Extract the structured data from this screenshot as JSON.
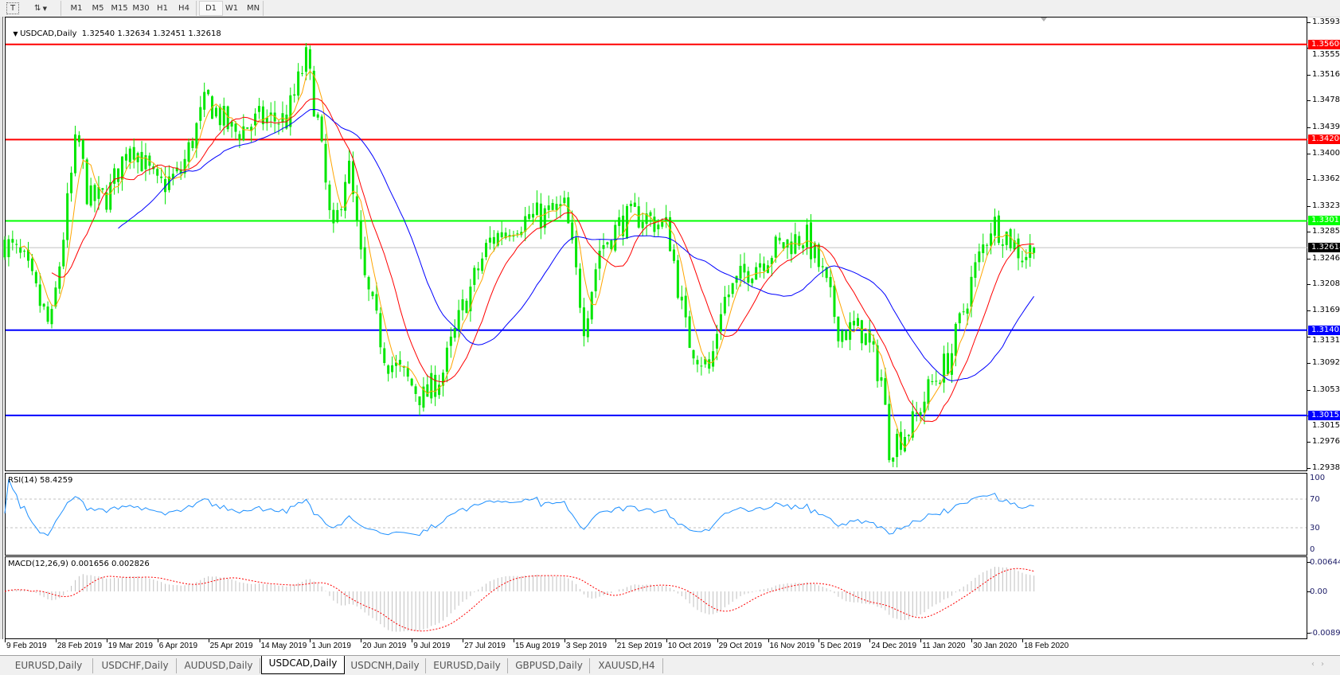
{
  "toolbar": {
    "text_tool_label": "T",
    "timeframes": [
      "M1",
      "M5",
      "M15",
      "M30",
      "H1",
      "H4",
      "D1",
      "W1",
      "MN"
    ],
    "active_timeframe": "D1"
  },
  "chart": {
    "title": "USDCAD,Daily",
    "ohlc": "1.32540 1.32634 1.32451 1.32618",
    "price_axis": [
      "1.35930",
      "1.35550",
      "1.35160",
      "1.34780",
      "1.34390",
      "1.34000",
      "1.33620",
      "1.33230",
      "1.32850",
      "1.32460",
      "1.32080",
      "1.31690",
      "1.31310",
      "1.30920",
      "1.30530",
      "1.30150",
      "1.29760",
      "1.29380"
    ],
    "levels": [
      {
        "price": "1.35606",
        "color": "#ff0000"
      },
      {
        "price": "1.34206",
        "color": "#ff0000"
      },
      {
        "price": "1.33011",
        "color": "#00ff00"
      },
      {
        "price": "1.31405",
        "color": "#0000ff"
      },
      {
        "price": "1.30152",
        "color": "#0000ff"
      }
    ],
    "current_price": "1.32618",
    "date_axis": [
      "9 Feb 2019",
      "28 Feb 2019",
      "19 Mar 2019",
      "6 Apr 2019",
      "25 Apr 2019",
      "14 May 2019",
      "1 Jun 2019",
      "20 Jun 2019",
      "9 Jul 2019",
      "27 Jul 2019",
      "15 Aug 2019",
      "3 Sep 2019",
      "21 Sep 2019",
      "10 Oct 2019",
      "29 Oct 2019",
      "16 Nov 2019",
      "5 Dec 2019",
      "24 Dec 2019",
      "11 Jan 2020",
      "30 Jan 2020",
      "18 Feb 2020"
    ],
    "colors": {
      "candle": "#00e600",
      "ma_fast": "#ffa500",
      "ma_mid": "#ff0000",
      "ma_slow": "#0000ff",
      "current_line": "#c0c0c0"
    }
  },
  "rsi": {
    "label": "RSI(14) 58.4259",
    "axis": [
      "100",
      "70",
      "30",
      "0"
    ],
    "color": "#1e90ff"
  },
  "macd": {
    "label": "MACD(12,26,9) 0.001656 0.002826",
    "axis": [
      "0.006448",
      "0.00",
      "-0.008982"
    ],
    "histogram_color": "#c0c0c0",
    "signal_color": "#ff0000"
  },
  "tabs": [
    "EURUSD,Daily",
    "USDCHF,Daily",
    "AUDUSD,Daily",
    "USDCAD,Daily",
    "USDCNH,Daily",
    "EURUSD,Daily",
    "GBPUSD,Daily",
    "XAUUSD,H4"
  ],
  "active_tab": "USDCAD,Daily",
  "chart_data": {
    "type": "candlestick",
    "symbol": "USDCAD",
    "timeframe": "Daily",
    "ylim": [
      1.2938,
      1.3593
    ],
    "rsi_ylim": [
      0,
      100
    ],
    "macd_ylim": [
      -0.008982,
      0.006448
    ],
    "last_bar": {
      "open": 1.3254,
      "high": 1.32634,
      "low": 1.32451,
      "close": 1.32618
    },
    "approx_close_path": [
      [
        "2019-02-08",
        1.327
      ],
      [
        "2019-02-15",
        1.324
      ],
      [
        "2019-02-26",
        1.314
      ],
      [
        "2019-03-07",
        1.343
      ],
      [
        "2019-03-12",
        1.333
      ],
      [
        "2019-03-19",
        1.3337
      ],
      [
        "2019-03-27",
        1.342
      ],
      [
        "2019-04-05",
        1.335
      ],
      [
        "2019-04-15",
        1.337
      ],
      [
        "2019-04-24",
        1.348
      ],
      [
        "2019-05-03",
        1.343
      ],
      [
        "2019-05-14",
        1.345
      ],
      [
        "2019-05-23",
        1.345
      ],
      [
        "2019-05-30",
        1.354
      ],
      [
        "2019-06-04",
        1.345
      ],
      [
        "2019-06-10",
        1.327
      ],
      [
        "2019-06-14",
        1.339
      ],
      [
        "2019-06-20",
        1.322
      ],
      [
        "2019-06-28",
        1.31
      ],
      [
        "2019-07-05",
        1.307
      ],
      [
        "2019-07-12",
        1.304
      ],
      [
        "2019-07-19",
        1.308
      ],
      [
        "2019-07-26",
        1.317
      ],
      [
        "2019-08-06",
        1.327
      ],
      [
        "2019-08-15",
        1.33
      ],
      [
        "2019-08-27",
        1.331
      ],
      [
        "2019-09-03",
        1.332
      ],
      [
        "2019-09-10",
        1.315
      ],
      [
        "2019-09-16",
        1.326
      ],
      [
        "2019-09-24",
        1.33
      ],
      [
        "2019-10-01",
        1.331
      ],
      [
        "2019-10-10",
        1.329
      ],
      [
        "2019-10-17",
        1.313
      ],
      [
        "2019-10-25",
        1.308
      ],
      [
        "2019-10-30",
        1.318
      ],
      [
        "2019-11-08",
        1.323
      ],
      [
        "2019-11-19",
        1.326
      ],
      [
        "2019-11-29",
        1.328
      ],
      [
        "2019-12-05",
        1.323
      ],
      [
        "2019-12-12",
        1.314
      ],
      [
        "2019-12-20",
        1.314
      ],
      [
        "2019-12-27",
        1.307
      ],
      [
        "2019-12-31",
        1.297
      ],
      [
        "2020-01-08",
        1.3
      ],
      [
        "2020-01-15",
        1.306
      ],
      [
        "2020-01-22",
        1.31
      ],
      [
        "2020-01-30",
        1.322
      ],
      [
        "2020-02-06",
        1.33
      ],
      [
        "2020-02-12",
        1.328
      ],
      [
        "2020-02-18",
        1.325
      ],
      [
        "2020-02-21",
        1.3262
      ]
    ]
  }
}
